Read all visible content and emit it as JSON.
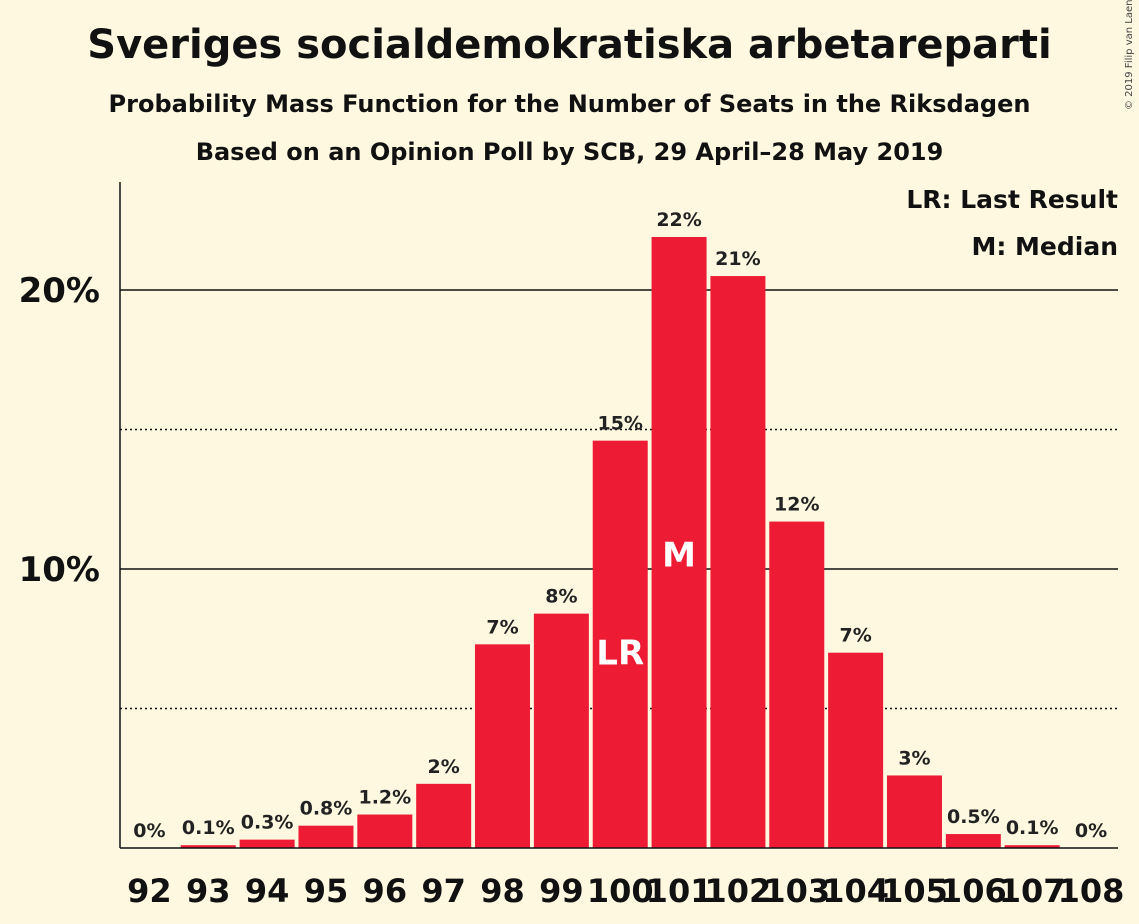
{
  "colors": {
    "background": "#fef8e1",
    "bar": "#ed1b34",
    "text": "#111111"
  },
  "copyright": "© 2019 Filip van Laenen",
  "chart_data": {
    "type": "bar",
    "title": "Sveriges socialdemokratiska arbetareparti",
    "subtitle": "Probability Mass Function for the Number of Seats in the Riksdagen",
    "subtitle2": "Based on an Opinion Poll by SCB, 29 April–28 May 2019",
    "xlabel": "",
    "ylabel": "",
    "categories": [
      "92",
      "93",
      "94",
      "95",
      "96",
      "97",
      "98",
      "99",
      "100",
      "101",
      "102",
      "103",
      "104",
      "105",
      "106",
      "107",
      "108"
    ],
    "values": [
      0,
      0.1,
      0.3,
      0.8,
      1.2,
      2.3,
      7.3,
      8.4,
      14.6,
      21.9,
      20.5,
      11.7,
      7.0,
      2.6,
      0.5,
      0.1,
      0
    ],
    "value_labels": [
      "0%",
      "0.1%",
      "0.3%",
      "0.8%",
      "1.2%",
      "2%",
      "7%",
      "8%",
      "15%",
      "22%",
      "21%",
      "12%",
      "7%",
      "3%",
      "0.5%",
      "0.1%",
      "0%"
    ],
    "ylim": [
      0,
      24
    ],
    "yticks": [
      {
        "value": 10,
        "label": "10%"
      },
      {
        "value": 20,
        "label": "20%"
      }
    ],
    "grid_solid": [
      10,
      20
    ],
    "grid_dotted": [
      5,
      15
    ],
    "markers": [
      {
        "category": "100",
        "label": "LR"
      },
      {
        "category": "101",
        "label": "M"
      }
    ],
    "legend": [
      "LR: Last Result",
      "M: Median"
    ],
    "legend_position": "top-right"
  }
}
